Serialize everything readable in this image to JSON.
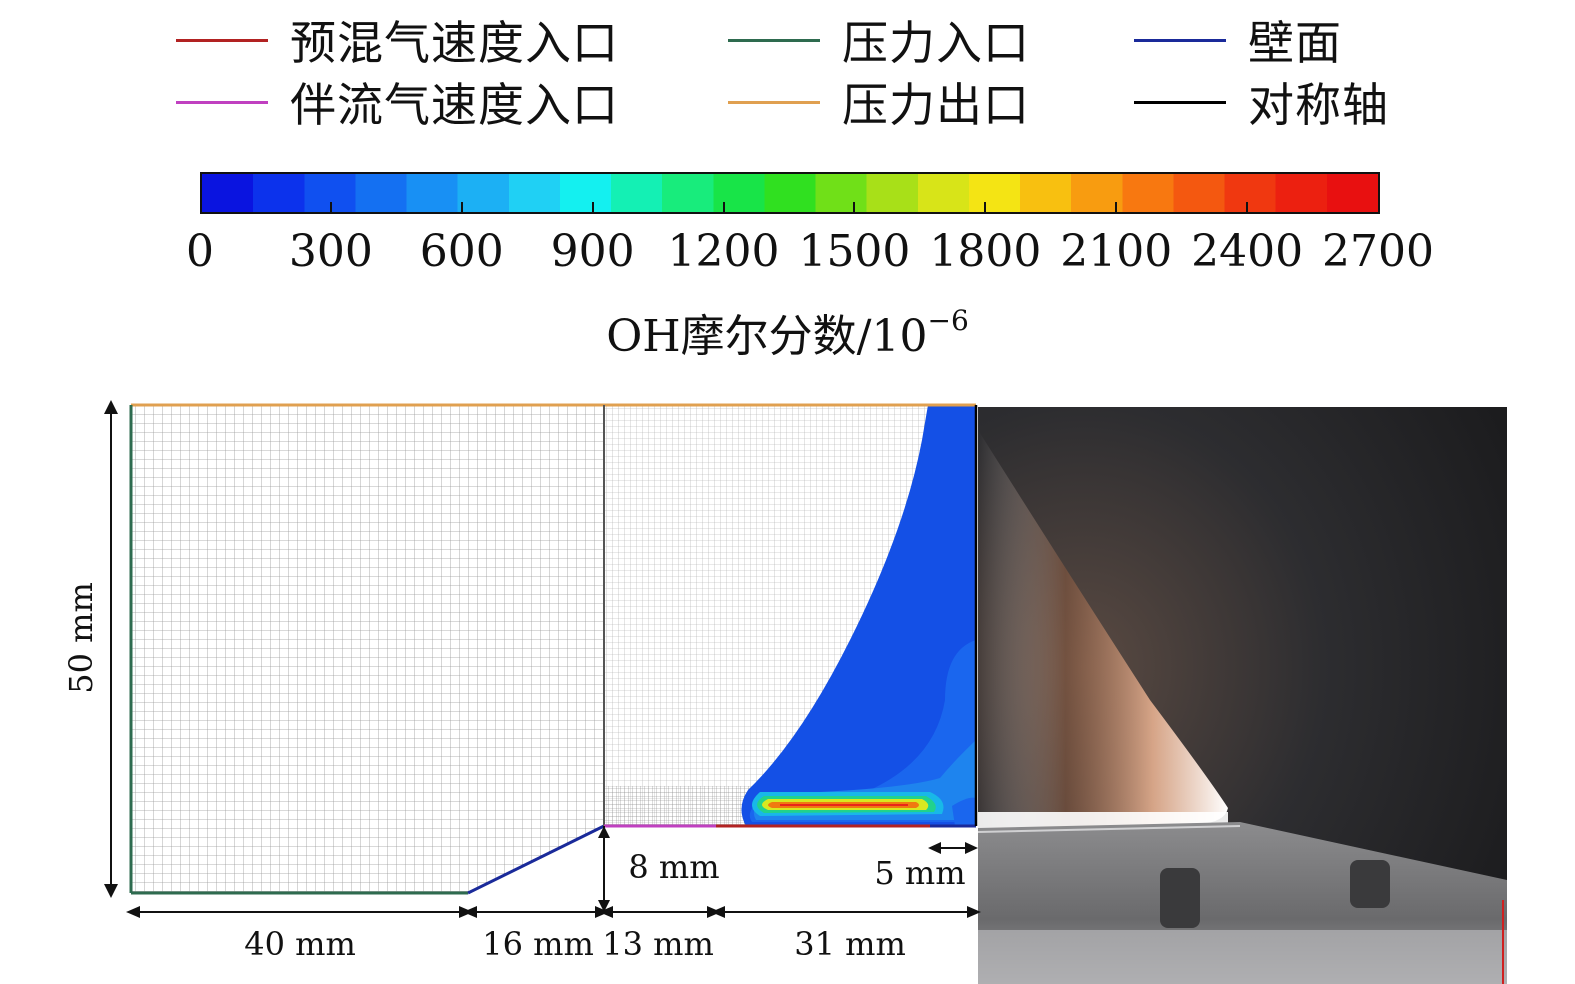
{
  "legend": {
    "items": [
      {
        "label": "预混气速度入口",
        "color": "#b22222"
      },
      {
        "label": "压力入口",
        "color": "#2e6b4f"
      },
      {
        "label": "壁面",
        "color": "#1a2a9a"
      },
      {
        "label": "伴流气速度入口",
        "color": "#c040c0"
      },
      {
        "label": "压力出口",
        "color": "#e0a050"
      },
      {
        "label": "对称轴",
        "color": "#000000"
      }
    ]
  },
  "colorbar": {
    "ticks": [
      "0",
      "300",
      "600",
      "900",
      "1200",
      "1500",
      "1800",
      "2100",
      "2400",
      "2700"
    ],
    "title": "OH摩尔分数/10",
    "title_exp": "−6"
  },
  "dimensions": {
    "height": "50 mm",
    "seg1": "40 mm",
    "seg2": "16 mm",
    "seg3": "13 mm",
    "seg4": "31 mm",
    "step": "8 mm",
    "inlet": "5 mm"
  }
}
